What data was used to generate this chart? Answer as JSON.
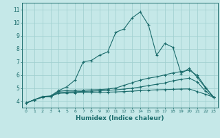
{
  "xlabel": "Humidex (Indice chaleur)",
  "xlim": [
    -0.5,
    23.5
  ],
  "ylim": [
    3.5,
    11.5
  ],
  "yticks": [
    4,
    5,
    6,
    7,
    8,
    9,
    10,
    11
  ],
  "xticks": [
    0,
    1,
    2,
    3,
    4,
    5,
    6,
    7,
    8,
    9,
    10,
    11,
    12,
    13,
    14,
    15,
    16,
    17,
    18,
    19,
    20,
    21,
    22,
    23
  ],
  "background_color": "#c5e8e8",
  "grid_color": "#9ecece",
  "line_color": "#1a6b6b",
  "curves": [
    {
      "x": [
        0,
        1,
        2,
        3,
        4,
        5,
        6,
        7,
        8,
        9,
        10,
        11,
        12,
        13,
        14,
        15,
        16,
        17,
        18,
        19,
        20,
        21,
        22,
        23
      ],
      "y": [
        3.85,
        4.1,
        4.35,
        4.4,
        4.8,
        5.1,
        5.6,
        7.0,
        7.1,
        7.5,
        7.75,
        9.25,
        9.5,
        10.35,
        10.8,
        9.8,
        7.5,
        8.4,
        8.1,
        6.1,
        6.5,
        5.8,
        5.0,
        4.3
      ]
    },
    {
      "x": [
        0,
        1,
        2,
        3,
        4,
        5,
        6,
        7,
        8,
        9,
        10,
        11,
        12,
        13,
        14,
        15,
        16,
        17,
        18,
        19,
        20,
        21,
        22,
        23
      ],
      "y": [
        3.85,
        4.1,
        4.3,
        4.35,
        4.75,
        4.8,
        4.82,
        4.84,
        4.86,
        4.88,
        4.92,
        5.0,
        5.2,
        5.4,
        5.6,
        5.75,
        5.85,
        6.0,
        6.15,
        6.25,
        6.35,
        5.95,
        5.05,
        4.3
      ]
    },
    {
      "x": [
        0,
        1,
        2,
        3,
        4,
        5,
        6,
        7,
        8,
        9,
        10,
        11,
        12,
        13,
        14,
        15,
        16,
        17,
        18,
        19,
        20,
        21,
        22,
        23
      ],
      "y": [
        3.85,
        4.1,
        4.3,
        4.35,
        4.65,
        4.7,
        4.72,
        4.74,
        4.76,
        4.78,
        4.82,
        4.86,
        4.92,
        4.98,
        5.08,
        5.18,
        5.28,
        5.38,
        5.55,
        5.65,
        5.75,
        5.45,
        4.75,
        4.3
      ]
    },
    {
      "x": [
        0,
        1,
        2,
        3,
        4,
        5,
        6,
        7,
        8,
        9,
        10,
        11,
        12,
        13,
        14,
        15,
        16,
        17,
        18,
        19,
        20,
        21,
        22,
        23
      ],
      "y": [
        3.85,
        4.1,
        4.3,
        4.35,
        4.6,
        4.62,
        4.63,
        4.64,
        4.65,
        4.66,
        4.68,
        4.7,
        4.73,
        4.76,
        4.8,
        4.83,
        4.86,
        4.88,
        4.9,
        4.92,
        4.93,
        4.72,
        4.52,
        4.3
      ]
    }
  ]
}
